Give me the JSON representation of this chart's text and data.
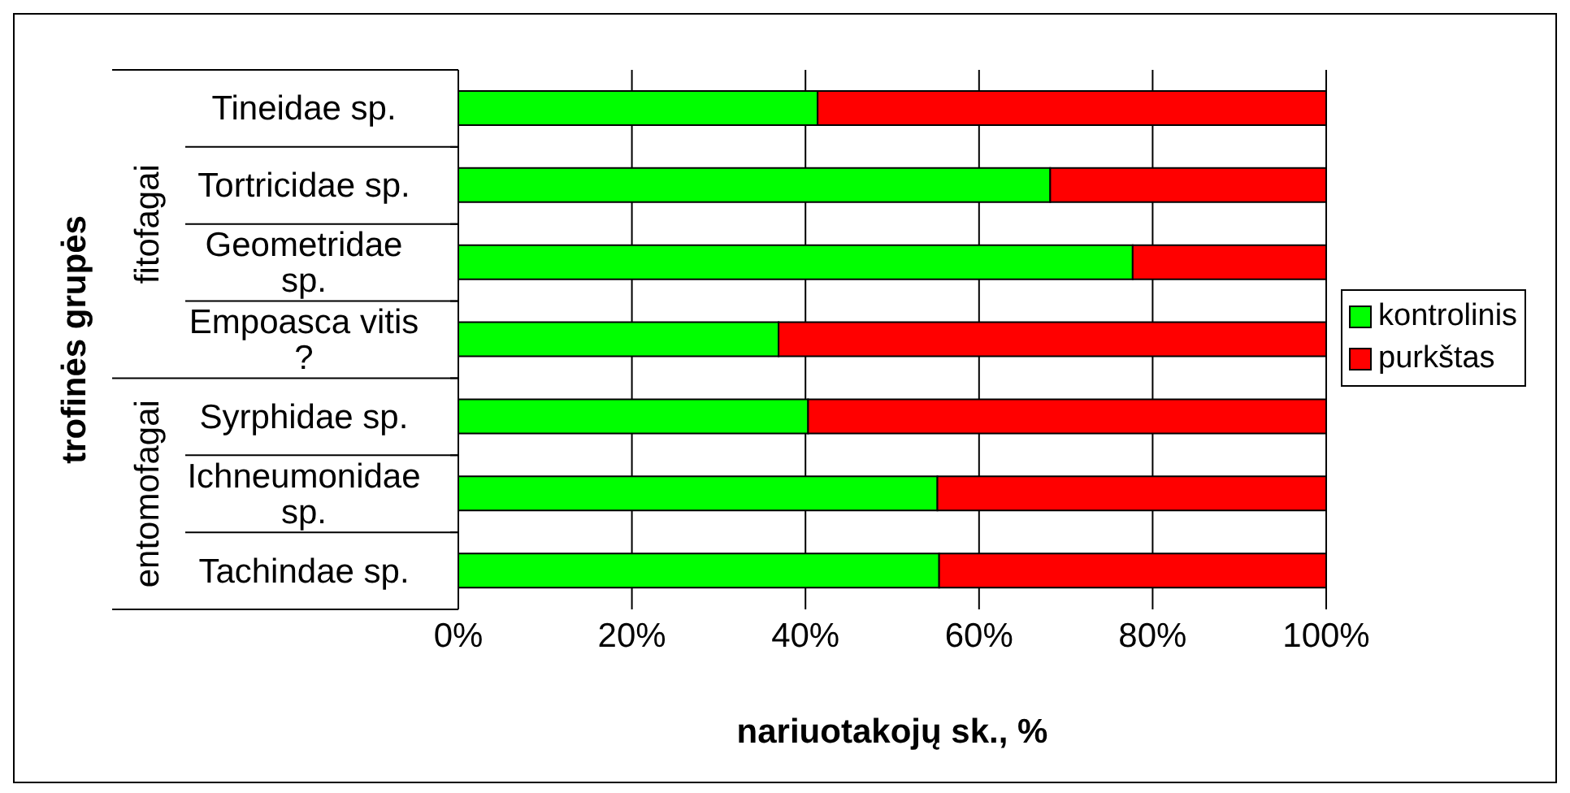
{
  "chart_data": {
    "type": "bar",
    "orientation": "horizontal",
    "stacked": true,
    "xlabel": "nariuotakojų sk., %",
    "ylabel": "trofinės grupės",
    "categories": [
      "Tineidae sp.",
      "Tortricidae sp.",
      "Geometridae sp.",
      "Empoasca vitis ?",
      "Syrphidae sp.",
      "Ichneumonidae sp.",
      "Tachindae sp."
    ],
    "series": [
      {
        "name": "kontrolinis",
        "color": "#00ff00",
        "values": [
          41.4,
          68.2,
          77.7,
          36.9,
          40.3,
          55.2,
          55.4
        ]
      },
      {
        "name": "purkštas",
        "color": "#ff0000",
        "values": [
          58.6,
          31.8,
          22.3,
          63.1,
          59.7,
          44.8,
          44.6
        ]
      }
    ],
    "xlim": [
      0,
      100
    ],
    "xticks": [
      {
        "value": 0,
        "label": "0%"
      },
      {
        "value": 20,
        "label": "20%"
      },
      {
        "value": 40,
        "label": "40%"
      },
      {
        "value": 60,
        "label": "60%"
      },
      {
        "value": 80,
        "label": "80%"
      },
      {
        "value": 100,
        "label": "100%"
      }
    ],
    "grid": "x",
    "legend": "right",
    "annotations": [
      "fitofagai",
      "entomofagai"
    ]
  }
}
